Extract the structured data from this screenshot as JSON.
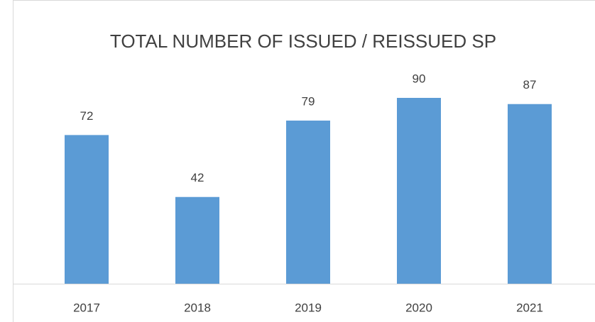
{
  "chart_data": {
    "type": "bar",
    "title": "TOTAL NUMBER OF ISSUED / REISSUED SP",
    "categories": [
      "2017",
      "2018",
      "2019",
      "2020",
      "2021"
    ],
    "values": [
      72,
      42,
      79,
      90,
      87
    ],
    "color": "#5b9bd5"
  }
}
